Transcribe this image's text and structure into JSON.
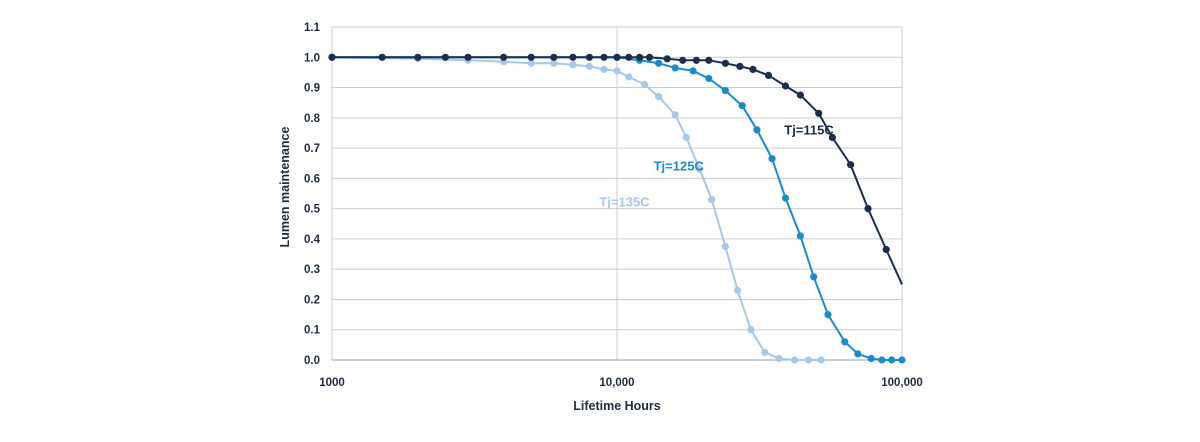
{
  "chart_data": {
    "type": "line",
    "xlabel": "Lifetime Hours",
    "ylabel": "Lumen maintenance",
    "x_scale": "log",
    "xlim": [
      1000,
      100000
    ],
    "ylim": [
      0,
      1.1
    ],
    "x_ticks": [
      {
        "value": 1000,
        "label": "1000"
      },
      {
        "value": 10000,
        "label": "10,000"
      },
      {
        "value": 100000,
        "label": "100,000"
      }
    ],
    "y_ticks": [
      {
        "value": 0.0,
        "label": "0.0"
      },
      {
        "value": 0.1,
        "label": "0.1"
      },
      {
        "value": 0.2,
        "label": "0.2"
      },
      {
        "value": 0.3,
        "label": "0.3"
      },
      {
        "value": 0.4,
        "label": "0.4"
      },
      {
        "value": 0.5,
        "label": "0.5"
      },
      {
        "value": 0.6,
        "label": "0.6"
      },
      {
        "value": 0.7,
        "label": "0.7"
      },
      {
        "value": 0.8,
        "label": "0.8"
      },
      {
        "value": 0.9,
        "label": "0.9"
      },
      {
        "value": 1.0,
        "label": "1.0"
      },
      {
        "value": 1.1,
        "label": "1.1"
      }
    ],
    "grid": {
      "horizontal": true,
      "vertical": true
    },
    "series": [
      {
        "name": "Tj=115C",
        "color": "#1b2e4e",
        "points": [
          [
            1000,
            1.0
          ],
          [
            1500,
            1.0
          ],
          [
            2000,
            1.0
          ],
          [
            2500,
            1.0
          ],
          [
            3000,
            1.0
          ],
          [
            4000,
            1.0
          ],
          [
            5000,
            1.0
          ],
          [
            6000,
            1.0
          ],
          [
            7000,
            1.0
          ],
          [
            8000,
            1.0
          ],
          [
            9000,
            1.0
          ],
          [
            10000,
            1.0
          ],
          [
            11000,
            1.0
          ],
          [
            12000,
            1.0
          ],
          [
            13000,
            1.0
          ],
          [
            15000,
            0.995
          ],
          [
            17000,
            0.99
          ],
          [
            19000,
            0.99
          ],
          [
            21000,
            0.99
          ],
          [
            24000,
            0.98
          ],
          [
            27000,
            0.97
          ],
          [
            30000,
            0.96
          ],
          [
            34000,
            0.94
          ],
          [
            39000,
            0.905
          ],
          [
            44000,
            0.875
          ],
          [
            51000,
            0.815
          ],
          [
            57000,
            0.735
          ],
          [
            66000,
            0.645
          ],
          [
            76000,
            0.5
          ],
          [
            88000,
            0.365
          ],
          [
            100000,
            0.25
          ]
        ]
      },
      {
        "name": "Tj=125C",
        "color": "#1a8ccc",
        "points": [
          [
            1000,
            1.0
          ],
          [
            10000,
            1.0
          ],
          [
            12000,
            0.99
          ],
          [
            14000,
            0.98
          ],
          [
            16000,
            0.965
          ],
          [
            18500,
            0.955
          ],
          [
            21000,
            0.93
          ],
          [
            24000,
            0.89
          ],
          [
            27500,
            0.84
          ],
          [
            31000,
            0.76
          ],
          [
            35000,
            0.665
          ],
          [
            39000,
            0.535
          ],
          [
            44000,
            0.41
          ],
          [
            49000,
            0.275
          ],
          [
            55000,
            0.15
          ],
          [
            63000,
            0.06
          ],
          [
            70000,
            0.02
          ],
          [
            78000,
            0.005
          ],
          [
            85000,
            0.0
          ],
          [
            92000,
            0.0
          ],
          [
            100000,
            0.0
          ]
        ]
      },
      {
        "name": "Tj=135C",
        "color": "#a6c8ea",
        "points": [
          [
            1000,
            1.0
          ],
          [
            2000,
            0.995
          ],
          [
            3000,
            0.99
          ],
          [
            4000,
            0.985
          ],
          [
            5000,
            0.98
          ],
          [
            6000,
            0.98
          ],
          [
            7000,
            0.975
          ],
          [
            8000,
            0.97
          ],
          [
            9000,
            0.96
          ],
          [
            10000,
            0.955
          ],
          [
            11000,
            0.935
          ],
          [
            12500,
            0.91
          ],
          [
            14000,
            0.87
          ],
          [
            16000,
            0.81
          ],
          [
            17500,
            0.735
          ],
          [
            19500,
            0.63
          ],
          [
            21500,
            0.53
          ],
          [
            24000,
            0.375
          ],
          [
            26500,
            0.23
          ],
          [
            29500,
            0.1
          ],
          [
            33000,
            0.025
          ],
          [
            37000,
            0.005
          ],
          [
            42000,
            0.0
          ],
          [
            47000,
            0.0
          ],
          [
            52000,
            0.0
          ]
        ]
      }
    ],
    "annotations": [
      {
        "text": "Tj=115C",
        "series": "Tj=115C",
        "x": 60000,
        "y": 0.735
      },
      {
        "text": "Tj=125C",
        "series": "Tj=125C",
        "x": 21000,
        "y": 0.64
      },
      {
        "text": "Tj=135C",
        "series": "Tj=135C",
        "x": 14000,
        "y": 0.52
      }
    ]
  }
}
